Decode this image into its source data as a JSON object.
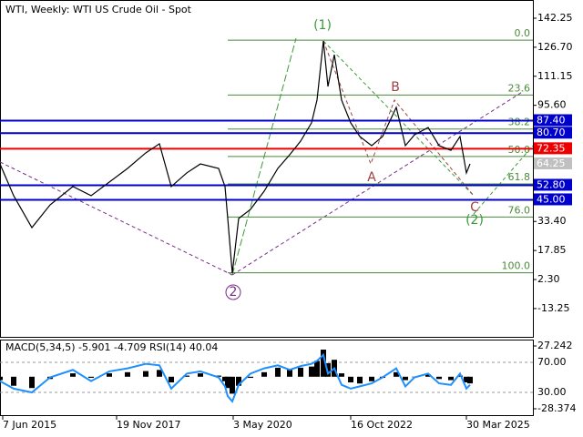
{
  "chart_data": [
    {
      "type": "line",
      "title": "WTI, Weekly:  WTI US Crude Oil - Spot",
      "x": [
        0,
        15,
        35,
        55,
        80,
        100,
        120,
        140,
        160,
        175,
        188,
        205,
        220,
        240,
        247,
        250,
        255,
        262,
        275,
        290,
        305,
        318,
        330,
        342,
        348,
        355,
        360,
        367,
        375,
        385,
        395,
        408,
        420,
        435,
        445,
        455,
        470,
        482,
        495,
        505,
        512,
        516
      ],
      "series": [
        {
          "name": "WTI",
          "color": "#000000",
          "values": [
            64.2,
            47.2,
            30.1,
            42.3,
            52.1,
            47.2,
            54.5,
            61.8,
            70.1,
            75.0,
            52.1,
            59.4,
            64.2,
            61.8,
            52.1,
            35.0,
            5.7,
            35.0,
            39.9,
            49.6,
            61.8,
            69.1,
            76.4,
            86.2,
            98.4,
            130.1,
            105.7,
            122.7,
            98.4,
            86.2,
            78.9,
            74.0,
            78.9,
            94.5,
            74.0,
            79.8,
            83.7,
            74.0,
            71.5,
            78.9,
            59.4,
            64.25
          ]
        }
      ],
      "xlim": [
        0,
        585
      ],
      "xticks": [
        {
          "value": 3,
          "label": "7 Jun 2015"
        },
        {
          "value": 128,
          "label": "19 Nov 2017"
        },
        {
          "value": 256,
          "label": "3 May 2020"
        },
        {
          "value": 385,
          "label": "16 Oct 2022"
        },
        {
          "value": 512,
          "label": "30 Mar 2025"
        }
      ],
      "ylim": [
        -28.4,
        152.0
      ],
      "yticks": [
        142.25,
        {
          "value": 126.7,
          "label": "126.70"
        },
        111.15,
        {
          "value": 95.6,
          "label": "95.60"
        },
        {
          "value": 33.4,
          "label": "33.40"
        },
        17.85,
        {
          "value": 2.3,
          "label": "2.30"
        },
        -13.25
      ],
      "levels": [
        {
          "value": 87.4,
          "label": "87.40",
          "color": "#0000cc"
        },
        {
          "value": 80.7,
          "label": "80.70",
          "color": "#0000cc"
        },
        {
          "value": 72.35,
          "label": "72.35",
          "color": "#ee0000"
        },
        {
          "value": 52.8,
          "label": "52.80",
          "color": "#0000cc"
        },
        {
          "value": 45,
          "label": "45.00",
          "color": "#0000cc"
        }
      ],
      "current_price": 64.25,
      "fib_color": "#4a8a3a",
      "fib_levels": [
        {
          "value": 130.5,
          "label": "0.0"
        },
        {
          "value": 101.1,
          "label": "23.6"
        },
        {
          "value": 82.9,
          "label": "38.2"
        },
        {
          "value": 68.2,
          "label": "50.0"
        },
        {
          "value": 53.5,
          "label": "61.8"
        },
        {
          "value": 35.8,
          "label": "76.0"
        },
        {
          "value": 5.9,
          "label": "100.0"
        }
      ],
      "annotations": [
        {
          "text": "(1)",
          "color": "#3a9a3a"
        },
        {
          "text": "B",
          "color": "#a04040"
        },
        {
          "text": "A",
          "color": "#a04040"
        },
        {
          "text": "C",
          "color": "#a04040"
        },
        {
          "text": "(2)",
          "color": "#3a9a3a"
        },
        {
          "text": "2",
          "color": "#7a2a8a"
        }
      ]
    },
    {
      "type": "bar",
      "title": "MACD(5,34,5) -5.901 -4.709 RSI(14) 40.04",
      "series": [
        {
          "name": "MACD",
          "color": "#000000",
          "values": [
            -3,
            -8,
            -10,
            -2,
            3,
            -1,
            3,
            4,
            5,
            6,
            -5,
            1,
            3,
            1,
            -4,
            -10,
            -15,
            -8,
            -1,
            4,
            8,
            7,
            8,
            9,
            14,
            24,
            12,
            15,
            3,
            -5,
            -6,
            -4,
            -1,
            4,
            -3,
            0,
            2,
            -2,
            -3,
            1,
            -5,
            -5.901
          ]
        },
        {
          "name": "RSI",
          "color": "#1e90ff",
          "axis": "y2",
          "values": [
            45,
            35,
            30,
            50,
            60,
            45,
            58,
            62,
            68,
            66,
            35,
            55,
            58,
            50,
            38,
            25,
            18,
            40,
            55,
            62,
            66,
            60,
            65,
            68,
            72,
            80,
            55,
            62,
            40,
            35,
            38,
            42,
            50,
            62,
            38,
            50,
            55,
            42,
            40,
            55,
            35,
            40.04
          ]
        }
      ],
      "ylim": [
        -28.374,
        27.242
      ],
      "yticks": [
        27.242,
        -28.374
      ],
      "y2lim": [
        8.2,
        91.8
      ],
      "y2ticks": [
        {
          "value": 70,
          "label": "70.00"
        },
        {
          "value": 30,
          "label": "30.00"
        }
      ]
    }
  ]
}
